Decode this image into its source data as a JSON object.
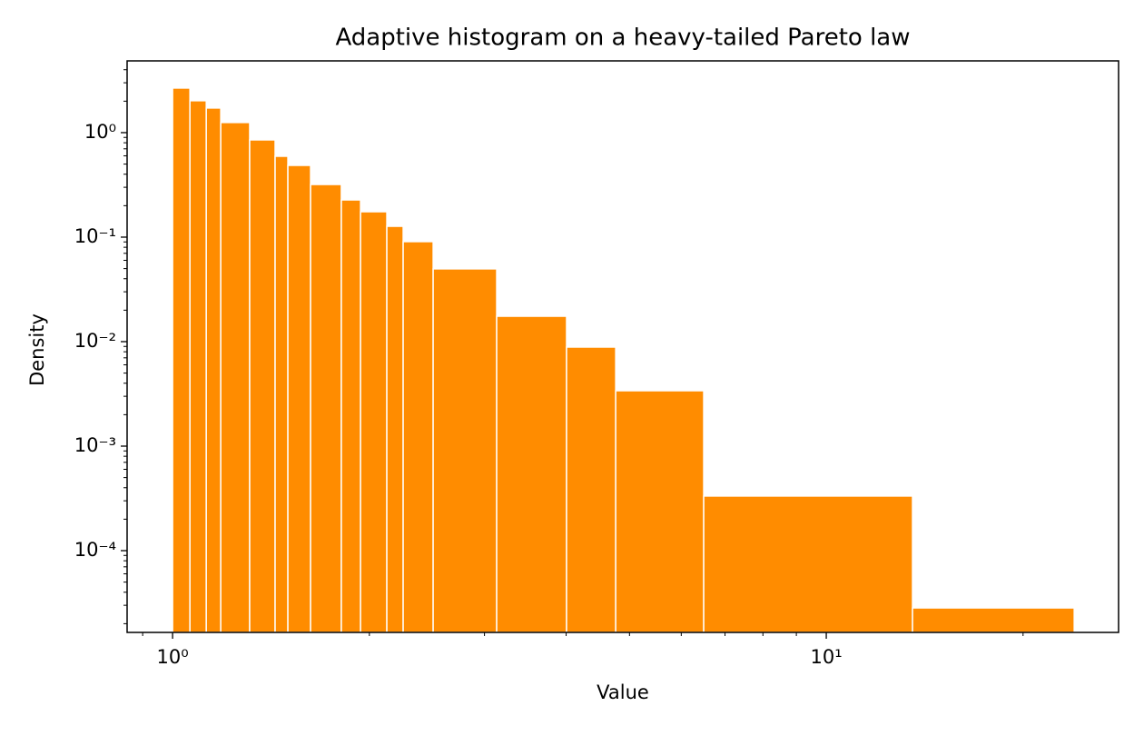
{
  "chart_data": {
    "type": "histogram",
    "title": "Adaptive histogram on a heavy-tailed Pareto law",
    "xlabel": "Value",
    "ylabel": "Density",
    "bins": [
      1.0,
      1.063,
      1.126,
      1.185,
      1.312,
      1.435,
      1.501,
      1.626,
      1.812,
      1.939,
      2.127,
      2.253,
      2.504,
      3.132,
      4.006,
      4.763,
      6.494,
      13.55,
      23.95
    ],
    "values": [
      2.67,
      2.02,
      1.72,
      1.25,
      0.852,
      0.594,
      0.486,
      0.319,
      0.227,
      0.175,
      0.127,
      0.0906,
      0.0497,
      0.0175,
      0.00887,
      0.00339,
      0.000333,
      2.83e-05
    ],
    "color": "#ff8c00",
    "edgecolor": "#ffffff",
    "xscale": "log",
    "yscale": "log",
    "xlim": [
      0.852,
      28.0
    ],
    "ylim": [
      1.65e-05,
      4.86
    ],
    "xticks": [
      {
        "value": 1,
        "label": "10⁰"
      },
      {
        "value": 10,
        "label": "10¹"
      }
    ],
    "yticks": [
      {
        "value": 0.0001,
        "label": "10⁻⁴"
      },
      {
        "value": 0.001,
        "label": "10⁻³"
      },
      {
        "value": 0.01,
        "label": "10⁻²"
      },
      {
        "value": 0.1,
        "label": "10⁻¹"
      },
      {
        "value": 1,
        "label": "10⁰"
      }
    ],
    "xminorticks": [
      0.9,
      2,
      3,
      4,
      5,
      6,
      7,
      8,
      9,
      20
    ],
    "yminorticks": [
      2e-05,
      3e-05,
      4e-05,
      5e-05,
      6e-05,
      7e-05,
      8e-05,
      9e-05,
      0.0002,
      0.0003,
      0.0004,
      0.0005,
      0.0006,
      0.0007,
      0.0008,
      0.0009,
      0.002,
      0.003,
      0.004,
      0.005,
      0.006,
      0.007,
      0.008,
      0.009,
      0.02,
      0.03,
      0.04,
      0.05,
      0.06,
      0.07,
      0.08,
      0.09,
      0.2,
      0.3,
      0.4,
      0.5,
      0.6,
      0.7,
      0.8,
      0.9,
      2,
      3,
      4
    ]
  }
}
